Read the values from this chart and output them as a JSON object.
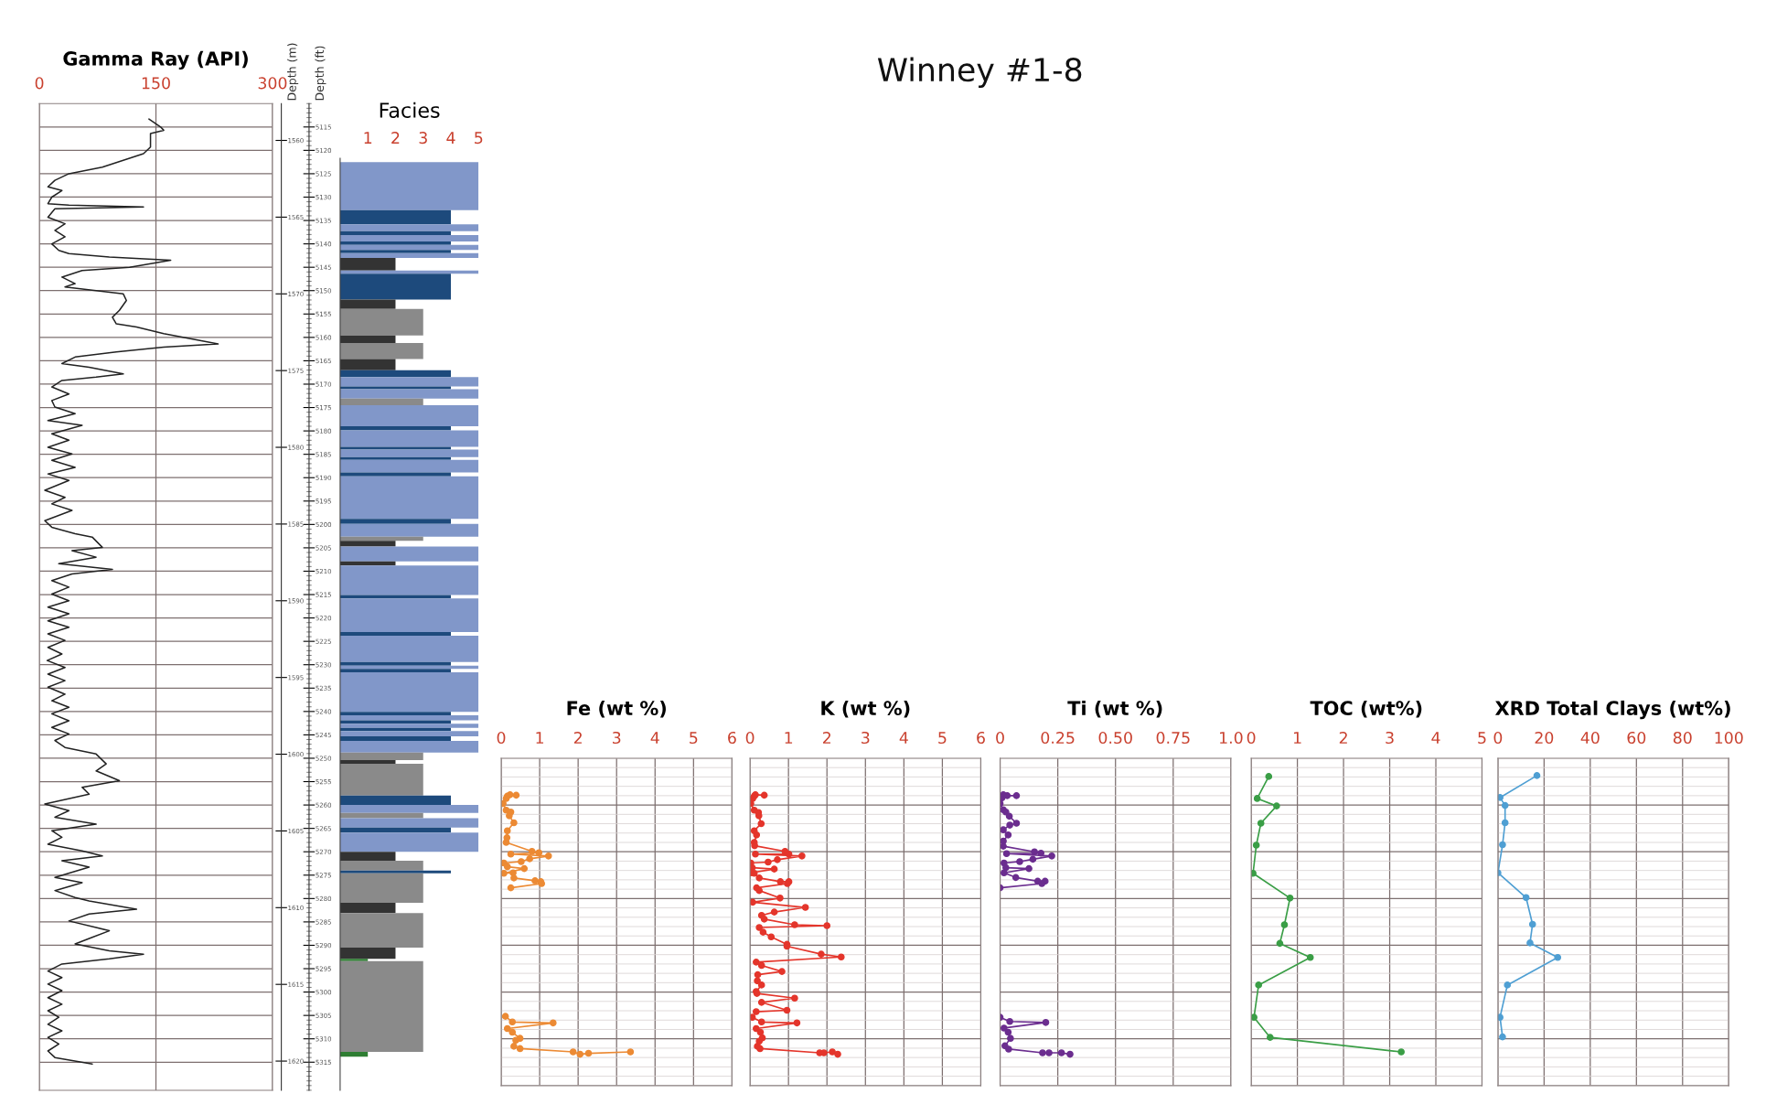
{
  "chart_data": [
    {
      "type": "other",
      "title": "Winney #1-8"
    },
    {
      "type": "line",
      "title": "Gamma Ray (API)",
      "xlim": [
        0,
        300
      ],
      "xticks": [
        0,
        150,
        300
      ],
      "ylim": [
        5321,
        5110
      ],
      "ylabel": "Depth (ft)",
      "yticks": [
        5115,
        5120,
        5125,
        5130,
        5135,
        5140,
        5145,
        5150,
        5155,
        5160,
        5165,
        5170,
        5175,
        5180,
        5185,
        5190,
        5195,
        5200,
        5205,
        5210,
        5215,
        5220,
        5225,
        5230,
        5235,
        5240,
        5245,
        5250,
        5255,
        5260,
        5265,
        5270,
        5275,
        5280,
        5285,
        5290,
        5295,
        5300,
        5305,
        5310,
        5315
      ],
      "y2label": "Depth (m)",
      "y2lim": [
        1621.9,
        1557.6
      ],
      "y2ticks": [
        1560,
        1565,
        1570,
        1575,
        1580,
        1585,
        1590,
        1595,
        1600,
        1605,
        1610,
        1615,
        1620
      ],
      "grid": true,
      "series": [
        {
          "color": "#222222",
          "x": [
            141,
            156,
            160,
            143,
            143,
            134,
            81,
            38,
            20,
            11,
            29,
            16,
            11,
            38,
            134,
            20,
            11,
            33,
            20,
            33,
            16,
            25,
            38,
            90,
            169,
            116,
            55,
            29,
            46,
            33,
            73,
            108,
            112,
            103,
            94,
            99,
            125,
            160,
            230,
            160,
            99,
            46,
            29,
            64,
            108,
            73,
            29,
            16,
            38,
            16,
            20,
            46,
            11,
            55,
            16,
            38,
            11,
            42,
            16,
            46,
            11,
            38,
            7,
            33,
            16,
            42,
            7,
            16,
            46,
            68,
            81,
            42,
            73,
            25,
            94,
            42,
            16,
            38,
            16,
            38,
            11,
            38,
            11,
            38,
            11,
            33,
            11,
            29,
            10,
            33,
            11,
            33,
            11,
            33,
            16,
            38,
            16,
            38,
            16,
            38,
            20,
            33,
            73,
            86,
            73,
            103,
            55,
            64,
            7,
            38,
            20,
            73,
            16,
            29,
            11,
            55,
            81,
            29,
            64,
            20,
            55,
            20,
            46,
            64,
            125,
            64,
            38,
            73,
            90,
            68,
            46,
            90,
            134,
            90,
            29,
            11,
            29,
            11,
            29,
            11,
            29,
            11,
            25,
            11,
            29,
            11,
            25,
            11,
            20,
            68
          ],
          "values": [
            5113.3,
            5115.0,
            5115.7,
            5116.4,
            5119.3,
            5120.7,
            5123.6,
            5125.0,
            5126.4,
            5127.8,
            5128.6,
            5130.0,
            5131.4,
            5131.7,
            5132.1,
            5132.5,
            5134.3,
            5135.7,
            5137.1,
            5138.5,
            5140.0,
            5141.4,
            5142.1,
            5142.8,
            5143.5,
            5145.0,
            5145.7,
            5147.1,
            5148.5,
            5149.2,
            5150.0,
            5150.7,
            5152.1,
            5154.2,
            5155.7,
            5157.1,
            5157.8,
            5159.2,
            5161.4,
            5162.1,
            5163.1,
            5164.2,
            5165.6,
            5166.4,
            5167.8,
            5168.5,
            5169.2,
            5170.6,
            5172.1,
            5173.5,
            5174.9,
            5176.3,
            5177.8,
            5178.8,
            5180.6,
            5182.0,
            5183.5,
            5184.9,
            5186.3,
            5187.8,
            5189.2,
            5190.6,
            5192.7,
            5194.2,
            5195.6,
            5197.0,
            5199.2,
            5200.6,
            5202.0,
            5202.7,
            5204.9,
            5205.6,
            5207.0,
            5208.4,
            5209.6,
            5210.6,
            5212.0,
            5213.4,
            5214.9,
            5216.3,
            5217.7,
            5219.1,
            5220.6,
            5222.0,
            5223.4,
            5224.8,
            5226.3,
            5227.7,
            5229.1,
            5230.6,
            5232.0,
            5233.4,
            5234.8,
            5236.3,
            5237.7,
            5239.1,
            5240.5,
            5242.0,
            5243.4,
            5244.8,
            5246.2,
            5247.7,
            5249.1,
            5251.2,
            5252.7,
            5254.8,
            5256.2,
            5257.7,
            5259.8,
            5261.2,
            5262.6,
            5264.1,
            5265.5,
            5266.9,
            5268.4,
            5269.8,
            5270.9,
            5271.9,
            5273.3,
            5275.5,
            5276.6,
            5278.3,
            5279.8,
            5280.5,
            5282.3,
            5283.3,
            5284.8,
            5286.2,
            5286.9,
            5288.3,
            5289.7,
            5291.2,
            5291.9,
            5292.9,
            5294.0,
            5295.5,
            5296.9,
            5298.3,
            5299.7,
            5301.2,
            5302.6,
            5304.0,
            5305.4,
            5306.9,
            5308.3,
            5309.7,
            5311.1,
            5312.6,
            5314.0,
            5315.4
          ]
        }
      ]
    },
    {
      "type": "histogram",
      "title": "Facies",
      "orientation": "horizontal",
      "xlim": [
        0,
        5
      ],
      "xticks": [
        1,
        2,
        3,
        4,
        5
      ],
      "ylim": [
        5321,
        5121.7
      ],
      "tick_labels": "x",
      "yticks": [
        5125,
        5130,
        5135,
        5140,
        5145,
        5150,
        5155,
        5160,
        5165,
        5170,
        5175,
        5180,
        5185,
        5190,
        5195,
        5200,
        5205,
        5210,
        5215,
        5220,
        5225,
        5230,
        5235,
        5240,
        5245,
        5250,
        5255,
        5260,
        5265,
        5270,
        5275,
        5280,
        5285,
        5290,
        5295,
        5300,
        5305,
        5310,
        5315
      ],
      "bins": [
        5122.5,
        5132.8,
        5135.8,
        5137.3,
        5138.1,
        5139.5,
        5140.2,
        5141.3,
        5142.0,
        5143.0,
        5145.7,
        5146.4,
        5151.9,
        5153.9,
        5159.6,
        5161.2,
        5164.6,
        5167.0,
        5168.5,
        5170.5,
        5171.1,
        5173.1,
        5174.5,
        5179.0,
        5179.9,
        5183.4,
        5184.0,
        5185.6,
        5186.2,
        5188.9,
        5189.7,
        5198.8,
        5199.9,
        5202.6,
        5203.5,
        5204.7,
        5207.9,
        5208.8,
        5215.1,
        5215.8,
        5223.0,
        5223.8,
        5229.4,
        5230.2,
        5230.9,
        5231.6,
        5240.1,
        5240.8,
        5241.9,
        5242.6,
        5243.5,
        5244.2,
        5245.3,
        5246.3,
        5248.8,
        5250.4,
        5251.2,
        5258.0,
        5260.0,
        5261.7,
        5262.8,
        5264.8,
        5265.9,
        5270.0,
        5271.9,
        5274.0,
        5274.6,
        5280.9,
        5283.1,
        5290.5,
        5292.9,
        5293.4,
        5312.8,
        5313.8
      ],
      "values": [
        5,
        4,
        5,
        4,
        5,
        4,
        5,
        4,
        5,
        2,
        5,
        4,
        2,
        3,
        2,
        3,
        2,
        4,
        5,
        4,
        5,
        3,
        5,
        4,
        5,
        4,
        5,
        4,
        5,
        4,
        5,
        4,
        5,
        3,
        2,
        5,
        2,
        5,
        4,
        5,
        4,
        5,
        4,
        5,
        4,
        5,
        4,
        5,
        4,
        5,
        4,
        5,
        4,
        5,
        3,
        2,
        3,
        4,
        5,
        3,
        5,
        4,
        5,
        2,
        3,
        4,
        3,
        2,
        3,
        2,
        1,
        3,
        1
      ],
      "colors": [
        "#8197c9",
        "#1d4a7c",
        "#8197c9",
        "#1d4a7c",
        "#8197c9",
        "#1d4a7c",
        "#8197c9",
        "#1d4a7c",
        "#8197c9",
        "#333333",
        "#8197c9",
        "#1d4a7c",
        "#333333",
        "#8a8a8a",
        "#333333",
        "#8a8a8a",
        "#333333",
        "#1d4a7c",
        "#8197c9",
        "#1d4a7c",
        "#8197c9",
        "#8a8a8a",
        "#8197c9",
        "#1d4a7c",
        "#8197c9",
        "#1d4a7c",
        "#8197c9",
        "#1d4a7c",
        "#8197c9",
        "#1d4a7c",
        "#8197c9",
        "#1d4a7c",
        "#8197c9",
        "#8a8a8a",
        "#333333",
        "#8197c9",
        "#333333",
        "#8197c9",
        "#1d4a7c",
        "#8197c9",
        "#1d4a7c",
        "#8197c9",
        "#1d4a7c",
        "#8197c9",
        "#1d4a7c",
        "#8197c9",
        "#1d4a7c",
        "#8197c9",
        "#1d4a7c",
        "#8197c9",
        "#1d4a7c",
        "#8197c9",
        "#1d4a7c",
        "#8197c9",
        "#8a8a8a",
        "#333333",
        "#8a8a8a",
        "#1d4a7c",
        "#8197c9",
        "#8a8a8a",
        "#8197c9",
        "#1d4a7c",
        "#8197c9",
        "#333333",
        "#8a8a8a",
        "#1d4a7c",
        "#8a8a8a",
        "#333333",
        "#8a8a8a",
        "#333333",
        "#2e7d32",
        "#8a8a8a",
        "#2e7d32"
      ]
    },
    {
      "type": "line",
      "title": "Fe (wt %)",
      "xlim": [
        0,
        6
      ],
      "xticks": [
        0,
        1,
        2,
        3,
        4,
        5,
        6
      ],
      "ylim": [
        5320,
        5250
      ],
      "tick_labels": "x",
      "grid": true,
      "marker": "circle",
      "yticks": [
        5260,
        5270,
        5280,
        5290,
        5300,
        5310
      ],
      "series": [
        {
          "color": "#ec8a34",
          "x": [
            0.39,
            0.23,
            0.16,
            0.13,
            0.05,
            0.13,
            0.25,
            0.21,
            0.33,
            0.16,
            0.15,
            0.13,
            0.8,
            0.98,
            0.25,
            1.23,
            0.74,
            0.52,
            0.07,
            0.16,
            0.6,
            0.07,
            0.31,
            0.33,
            0.88,
            1.03,
            1.05,
            0.25,
            null,
            0.11,
            0.29,
            1.35,
            0.16,
            0.29,
            0.49,
            0.38,
            0.33,
            0.49,
            1.87,
            2.05,
            2.27,
            3.36
          ],
          "values": [
            5257.9,
            5257.8,
            5258.1,
            5258.6,
            5259.7,
            5261.1,
            5261.5,
            5262.3,
            5263.8,
            5265.5,
            5267.0,
            5268.0,
            5269.9,
            5270.2,
            5270.5,
            5270.9,
            5271.5,
            5272.1,
            5272.4,
            5273.2,
            5273.6,
            5274.6,
            5274.5,
            5275.6,
            5276.2,
            5276.4,
            5276.8,
            5277.7,
            null,
            5305.2,
            5306.4,
            5306.6,
            5307.8,
            5308.6,
            5309.9,
            5310.3,
            5311.6,
            5312.1,
            5312.8,
            5313.3,
            5313.1,
            5312.8
          ]
        }
      ]
    },
    {
      "type": "line",
      "title": "K (wt %)",
      "xlim": [
        0,
        6
      ],
      "xticks": [
        0,
        1,
        2,
        3,
        4,
        5,
        6
      ],
      "ylim": [
        5320,
        5250
      ],
      "tick_labels": "x",
      "grid": true,
      "marker": "circle",
      "yticks": [
        5260,
        5270,
        5280,
        5290,
        5300,
        5310
      ],
      "series": [
        {
          "color": "#e4352b",
          "x": [
            0.37,
            0.14,
            0.11,
            0.07,
            0.02,
            0.11,
            0.22,
            0.23,
            0.29,
            0.11,
            0.17,
            0.11,
            0.12,
            0.91,
            1.01,
            0.14,
            1.35,
            0.71,
            0.47,
            0.02,
            0.06,
            0.63,
            0.02,
            0.11,
            0.24,
            0.79,
            1.01,
            0.97,
            0.17,
            0.24,
            0.78,
            0.07,
            1.44,
            0.63,
            0.3,
            0.37,
            1.16,
            2.0,
            0.24,
            0.34,
            0.55,
            0.96,
            0.96,
            1.85,
            2.37,
            0.16,
            0.3,
            0.83,
            0.2,
            0.19,
            0.3,
            0.16,
            0.18,
            1.16,
            0.3,
            0.96,
            0.16,
            0.06,
            0.3,
            1.22,
            0.16,
            0.27,
            0.32,
            0.24,
            0.19,
            0.26,
            1.81,
            1.92,
            2.14,
            2.28
          ],
          "values": [
            5257.9,
            5257.8,
            5258.1,
            5258.6,
            5259.7,
            5261.1,
            5261.6,
            5262.3,
            5264.0,
            5265.5,
            5266.4,
            5268.0,
            5268.7,
            5269.9,
            5270.5,
            5270.5,
            5270.9,
            5271.7,
            5272.2,
            5272.4,
            5273.4,
            5273.7,
            5274.5,
            5274.6,
            5275.6,
            5276.4,
            5276.4,
            5276.8,
            5277.7,
            5278.3,
            5279.9,
            5280.8,
            5281.9,
            5282.9,
            5283.6,
            5284.4,
            5285.6,
            5285.8,
            5286.2,
            5287.2,
            5288.2,
            5289.8,
            5290.2,
            5291.9,
            5292.5,
            5293.6,
            5294.3,
            5295.6,
            5296.3,
            5297.6,
            5298.5,
            5299.9,
            5300.3,
            5301.3,
            5302.2,
            5303.9,
            5304.2,
            5305.4,
            5306.4,
            5306.6,
            5307.8,
            5308.6,
            5309.8,
            5310.5,
            5311.6,
            5312.1,
            5313.0,
            5313.0,
            5312.8,
            5313.3
          ]
        }
      ]
    },
    {
      "type": "line",
      "title": "Ti (wt %)",
      "xlim": [
        0,
        1
      ],
      "xticks": [
        0,
        0.25,
        {
          "value": 0.5,
          "label": "0.50"
        },
        0.75,
        {
          "value": 1,
          "label": "1.0"
        }
      ],
      "ylim": [
        5320,
        5250
      ],
      "tick_labels": "x",
      "grid": true,
      "marker": "circle",
      "yticks": [
        5260,
        5270,
        5280,
        5290,
        5300,
        5310
      ],
      "series": [
        {
          "color": "#6b2d8f",
          "x": [
            0.071,
            0.031,
            0.014,
            0.008,
            0.0,
            0.014,
            0.025,
            0.04,
            0.071,
            0.042,
            0.014,
            0.035,
            0.014,
            0.014,
            0.149,
            0.177,
            0.028,
            0.224,
            0.142,
            0.085,
            0.017,
            0.025,
            0.125,
            0.017,
            0.068,
            0.163,
            0.195,
            0.181,
            0.0,
            null,
            0.0,
            0.042,
            0.198,
            0.017,
            0.035,
            0.045,
            0.021,
            0.037,
            0.184,
            0.212,
            0.266,
            0.303
          ],
          "values": [
            5258.0,
            5258.0,
            5257.8,
            5258.5,
            5259.7,
            5261.0,
            5261.5,
            5262.4,
            5263.9,
            5264.3,
            5265.3,
            5266.4,
            5267.7,
            5268.8,
            5270.0,
            5270.3,
            5270.4,
            5270.9,
            5271.6,
            5272.1,
            5272.4,
            5273.4,
            5273.6,
            5274.5,
            5275.5,
            5276.3,
            5276.3,
            5276.8,
            5277.7,
            null,
            5305.4,
            5306.3,
            5306.5,
            5307.7,
            5308.6,
            5309.9,
            5311.5,
            5312.2,
            5313.0,
            5313.0,
            5313.0,
            5313.3
          ]
        }
      ]
    },
    {
      "type": "line",
      "title": "TOC (wt%)",
      "xlim": [
        0,
        5
      ],
      "xticks": [
        0,
        1,
        2,
        3,
        4,
        5
      ],
      "ylim": [
        5320,
        5250
      ],
      "tick_labels": "x",
      "grid": true,
      "marker": "circle",
      "yticks": [
        5260,
        5270,
        5280,
        5290,
        5300,
        5310
      ],
      "series": [
        {
          "color": "#3a9e46",
          "x": [
            0.38,
            0.13,
            0.55,
            0.21,
            0.11,
            0.04,
            0.84,
            0.72,
            0.62,
            1.28,
            0.16,
            0.06,
            0.41,
            3.25
          ],
          "values": [
            5253.9,
            5258.6,
            5260.2,
            5263.9,
            5268.6,
            5274.6,
            5279.9,
            5285.6,
            5289.6,
            5292.6,
            5298.5,
            5305.4,
            5309.7,
            5312.8
          ]
        }
      ]
    },
    {
      "type": "line",
      "title": "XRD Total Clays (wt%)",
      "xlim": [
        0,
        100
      ],
      "xticks": [
        0,
        20,
        40,
        60,
        80,
        100
      ],
      "ylim": [
        5320,
        5250
      ],
      "tick_labels": "x",
      "grid": true,
      "marker": "circle",
      "yticks": [
        5260,
        5270,
        5280,
        5290,
        5300,
        5310
      ],
      "series": [
        {
          "color": "#4f9fd3",
          "x": [
            16.9,
            0.9,
            3.1,
            3.1,
            2.0,
            0.0,
            12.2,
            15.0,
            13.9,
            25.9,
            4.1,
            0.9,
            2.0
          ],
          "values": [
            5253.7,
            5258.4,
            5260.1,
            5263.8,
            5268.5,
            5274.5,
            5279.8,
            5285.5,
            5289.5,
            5292.6,
            5298.5,
            5305.4,
            5309.6
          ]
        }
      ]
    }
  ]
}
